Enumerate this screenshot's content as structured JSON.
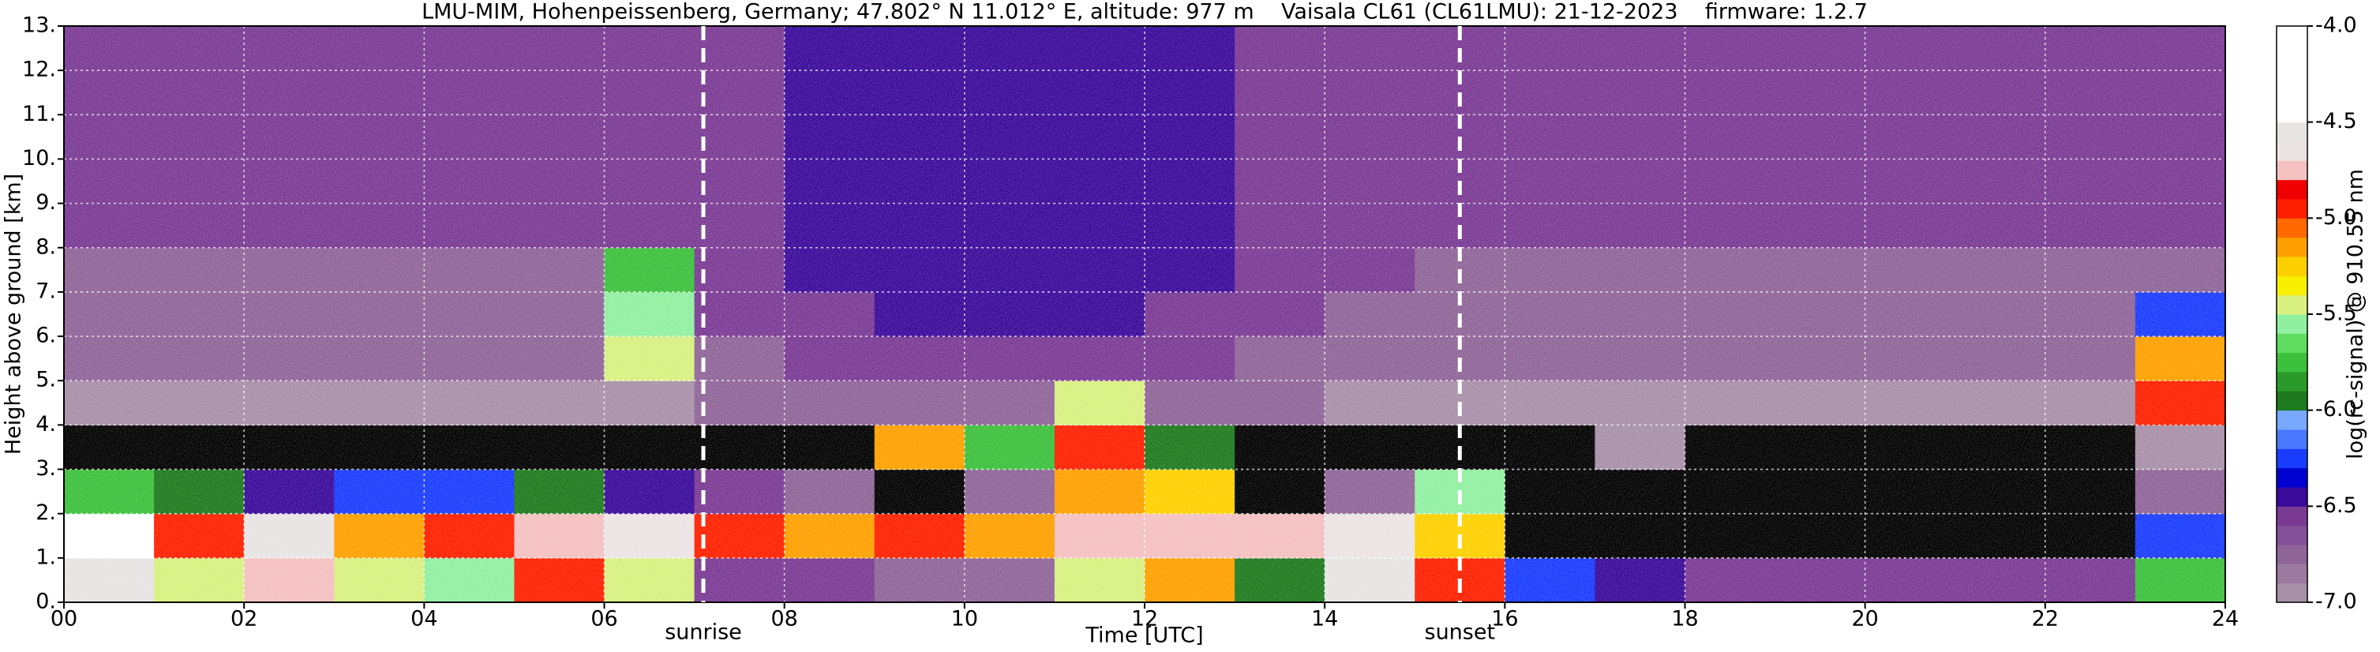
{
  "chart_data": {
    "type": "heatmap",
    "title": "LMU-MIM, Hohenpeissenberg, Germany; 47.802° N 11.012° E, altitude: 977 m    Vaisala CL61 (CL61LMU): 21-12-2023    firmware: 1.2.7",
    "x_label": "Time [UTC]",
    "y_label": "Height above ground [km]",
    "xlim": [
      0,
      24
    ],
    "ylim": [
      0,
      13
    ],
    "xticks": [
      {
        "value": 0,
        "label": "00"
      },
      {
        "value": 2,
        "label": "02"
      },
      {
        "value": 4,
        "label": "04"
      },
      {
        "value": 6,
        "label": "06"
      },
      {
        "value": 8,
        "label": "08"
      },
      10,
      12,
      14,
      16,
      18,
      20,
      22,
      24
    ],
    "yticks": [
      {
        "value": 0,
        "label": "0."
      },
      {
        "value": 1,
        "label": "1."
      },
      {
        "value": 2,
        "label": "2."
      },
      {
        "value": 3,
        "label": "3."
      },
      {
        "value": 4,
        "label": "4."
      },
      {
        "value": 5,
        "label": "5."
      },
      {
        "value": 6,
        "label": "6."
      },
      {
        "value": 7,
        "label": "7."
      },
      {
        "value": 8,
        "label": "8."
      },
      {
        "value": 9,
        "label": "9."
      },
      {
        "value": 10,
        "label": "10."
      },
      {
        "value": 11,
        "label": "11."
      },
      {
        "value": 12,
        "label": "12."
      },
      {
        "value": 13,
        "label": "13."
      }
    ],
    "grid": true,
    "x": [
      0,
      1,
      2,
      3,
      4,
      5,
      6,
      7,
      8,
      9,
      10,
      11,
      12,
      13,
      14,
      15,
      16,
      17,
      18,
      19,
      20,
      21,
      22,
      23,
      24
    ],
    "y": [
      0,
      1,
      2,
      3,
      4,
      5,
      6,
      7,
      8,
      9,
      10,
      11,
      12,
      13
    ],
    "z": [
      [
        -4.6,
        -5.4,
        -4.8,
        -5.5,
        -5.6,
        -5.0,
        -5.4,
        -6.6,
        -6.6,
        -6.7,
        -6.7,
        -5.5,
        -5.2,
        -6.0,
        -4.6,
        -5.0,
        -6.3,
        -6.5,
        -6.6,
        -6.6,
        -6.6,
        -6.6,
        -6.6,
        -5.8
      ],
      [
        -4.5,
        -5.0,
        -4.6,
        -5.2,
        -5.0,
        -4.8,
        -4.7,
        -5.0,
        -5.2,
        -5.0,
        -5.2,
        -4.8,
        -4.8,
        -4.8,
        -4.7,
        -5.3,
        -7.2,
        -7.2,
        -7.2,
        -7.2,
        -7.2,
        -7.2,
        -7.2,
        -6.3
      ],
      [
        -5.8,
        -6.0,
        -6.5,
        -6.3,
        -6.3,
        -6.0,
        -6.4,
        -6.6,
        -6.8,
        -7.2,
        -6.8,
        -5.2,
        -5.3,
        -7.1,
        -6.8,
        -5.6,
        -7.2,
        -7.2,
        -7.2,
        -7.2,
        -7.2,
        -7.2,
        -7.2,
        -6.8
      ],
      [
        -7.1,
        -7.1,
        -7.1,
        -7.1,
        -7.1,
        -7.1,
        -7.1,
        -7.1,
        -7.1,
        -5.2,
        -5.8,
        -5.0,
        -6.0,
        -7.1,
        -7.1,
        -7.1,
        -7.1,
        -6.9,
        -7.1,
        -7.1,
        -7.1,
        -7.1,
        -7.1,
        -6.9
      ],
      [
        -6.9,
        -6.9,
        -6.9,
        -6.9,
        -6.9,
        -6.9,
        -6.9,
        -6.8,
        -6.8,
        -6.7,
        -6.7,
        -5.5,
        -6.7,
        -6.8,
        -6.9,
        -6.9,
        -6.9,
        -6.9,
        -6.9,
        -6.9,
        -6.9,
        -6.9,
        -6.9,
        -5.0
      ],
      [
        -6.8,
        -6.8,
        -6.8,
        -6.8,
        -6.8,
        -6.8,
        -5.4,
        -6.7,
        -6.6,
        -6.6,
        -6.6,
        -6.6,
        -6.6,
        -6.7,
        -6.8,
        -6.8,
        -6.8,
        -6.8,
        -6.8,
        -6.8,
        -6.8,
        -6.8,
        -6.8,
        -5.2
      ],
      [
        -6.7,
        -6.7,
        -6.7,
        -6.7,
        -6.7,
        -6.7,
        -5.6,
        -6.6,
        -6.6,
        -6.5,
        -6.5,
        -6.5,
        -6.6,
        -6.6,
        -6.7,
        -6.7,
        -6.7,
        -6.7,
        -6.7,
        -6.7,
        -6.7,
        -6.7,
        -6.7,
        -6.3
      ],
      [
        -6.7,
        -6.7,
        -6.7,
        -6.7,
        -6.7,
        -6.7,
        -5.8,
        -6.6,
        -6.5,
        -6.5,
        -6.5,
        -6.5,
        -6.5,
        -6.6,
        -6.6,
        -6.7,
        -6.7,
        -6.7,
        -6.7,
        -6.7,
        -6.7,
        -6.7,
        -6.7,
        -6.7
      ],
      [
        -6.6,
        -6.6,
        -6.6,
        -6.6,
        -6.6,
        -6.6,
        -6.6,
        -6.6,
        -6.5,
        -6.5,
        -6.5,
        -6.5,
        -6.5,
        -6.6,
        -6.6,
        -6.6,
        -6.6,
        -6.6,
        -6.6,
        -6.6,
        -6.6,
        -6.6,
        -6.6,
        -6.6
      ],
      [
        -6.6,
        -6.6,
        -6.6,
        -6.6,
        -6.6,
        -6.6,
        -6.6,
        -6.6,
        -6.5,
        -6.5,
        -6.5,
        -6.5,
        -6.5,
        -6.6,
        -6.6,
        -6.6,
        -6.6,
        -6.6,
        -6.6,
        -6.6,
        -6.6,
        -6.6,
        -6.6,
        -6.6
      ],
      [
        -6.6,
        -6.6,
        -6.6,
        -6.6,
        -6.6,
        -6.6,
        -6.6,
        -6.6,
        -6.5,
        -6.5,
        -6.5,
        -6.5,
        -6.5,
        -6.6,
        -6.6,
        -6.6,
        -6.6,
        -6.6,
        -6.6,
        -6.6,
        -6.6,
        -6.6,
        -6.6,
        -6.6
      ],
      [
        -6.6,
        -6.6,
        -6.6,
        -6.6,
        -6.6,
        -6.6,
        -6.6,
        -6.6,
        -6.5,
        -6.5,
        -6.5,
        -6.5,
        -6.5,
        -6.6,
        -6.6,
        -6.6,
        -6.6,
        -6.6,
        -6.6,
        -6.6,
        -6.6,
        -6.6,
        -6.6,
        -6.6
      ],
      [
        -6.6,
        -6.6,
        -6.6,
        -6.6,
        -6.6,
        -6.6,
        -6.6,
        -6.6,
        -6.5,
        -6.5,
        -6.5,
        -6.5,
        -6.5,
        -6.6,
        -6.6,
        -6.6,
        -6.6,
        -6.6,
        -6.6,
        -6.6,
        -6.6,
        -6.6,
        -6.6,
        -6.6
      ]
    ],
    "annotations": [
      {
        "text": "sunrise",
        "x": 7.1
      },
      {
        "text": "sunset",
        "x": 15.5
      }
    ],
    "colorbar": {
      "label": "log(rc-signal) @ 910.55 nm",
      "lim": [
        -7,
        -4
      ],
      "ticks": [
        {
          "value": -7,
          "label": "-7.0"
        },
        {
          "value": -6.5,
          "label": "-6.5"
        },
        {
          "value": -6,
          "label": "-6.0"
        },
        {
          "value": -5.5,
          "label": "-5.5"
        },
        {
          "value": -5,
          "label": "-5.0"
        },
        {
          "value": -4.5,
          "label": "-4.5"
        },
        {
          "value": -4,
          "label": "-4.0"
        }
      ],
      "under_color": "#000000",
      "colors": [
        "#a890a8",
        "#9c7aa0",
        "#8f6598",
        "#84509a",
        "#7a3a94",
        "#3a0a9a",
        "#0000d0",
        "#1a3cff",
        "#4a78ff",
        "#78a8ff",
        "#1e7a1e",
        "#2a9a2a",
        "#3cc03c",
        "#60dc60",
        "#90f0a0",
        "#d8f080",
        "#f8f000",
        "#ffd000",
        "#ffa000",
        "#ff6a00",
        "#ff2000",
        "#f00000",
        "#f4c0c0",
        "#ece4e4",
        "#e8e4e4",
        "#ffffff",
        "#ffffff",
        "#ffffff",
        "#ffffff",
        "#ffffff"
      ]
    }
  }
}
